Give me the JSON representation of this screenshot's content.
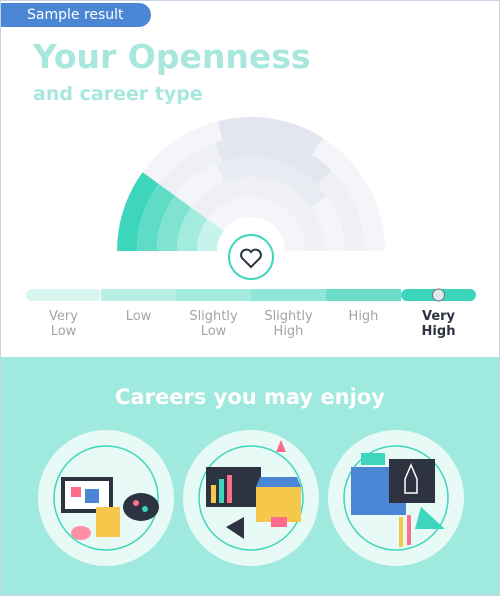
{
  "badge": "Sample result",
  "header": {
    "title": "Your Openness",
    "subtitle": "and career type"
  },
  "scale": {
    "levels": [
      "Very Low",
      "Low",
      "Slightly Low",
      "Slightly High",
      "High",
      "Very High"
    ],
    "selected": 5
  },
  "careers": {
    "heading": "Careers you may enjoy"
  }
}
